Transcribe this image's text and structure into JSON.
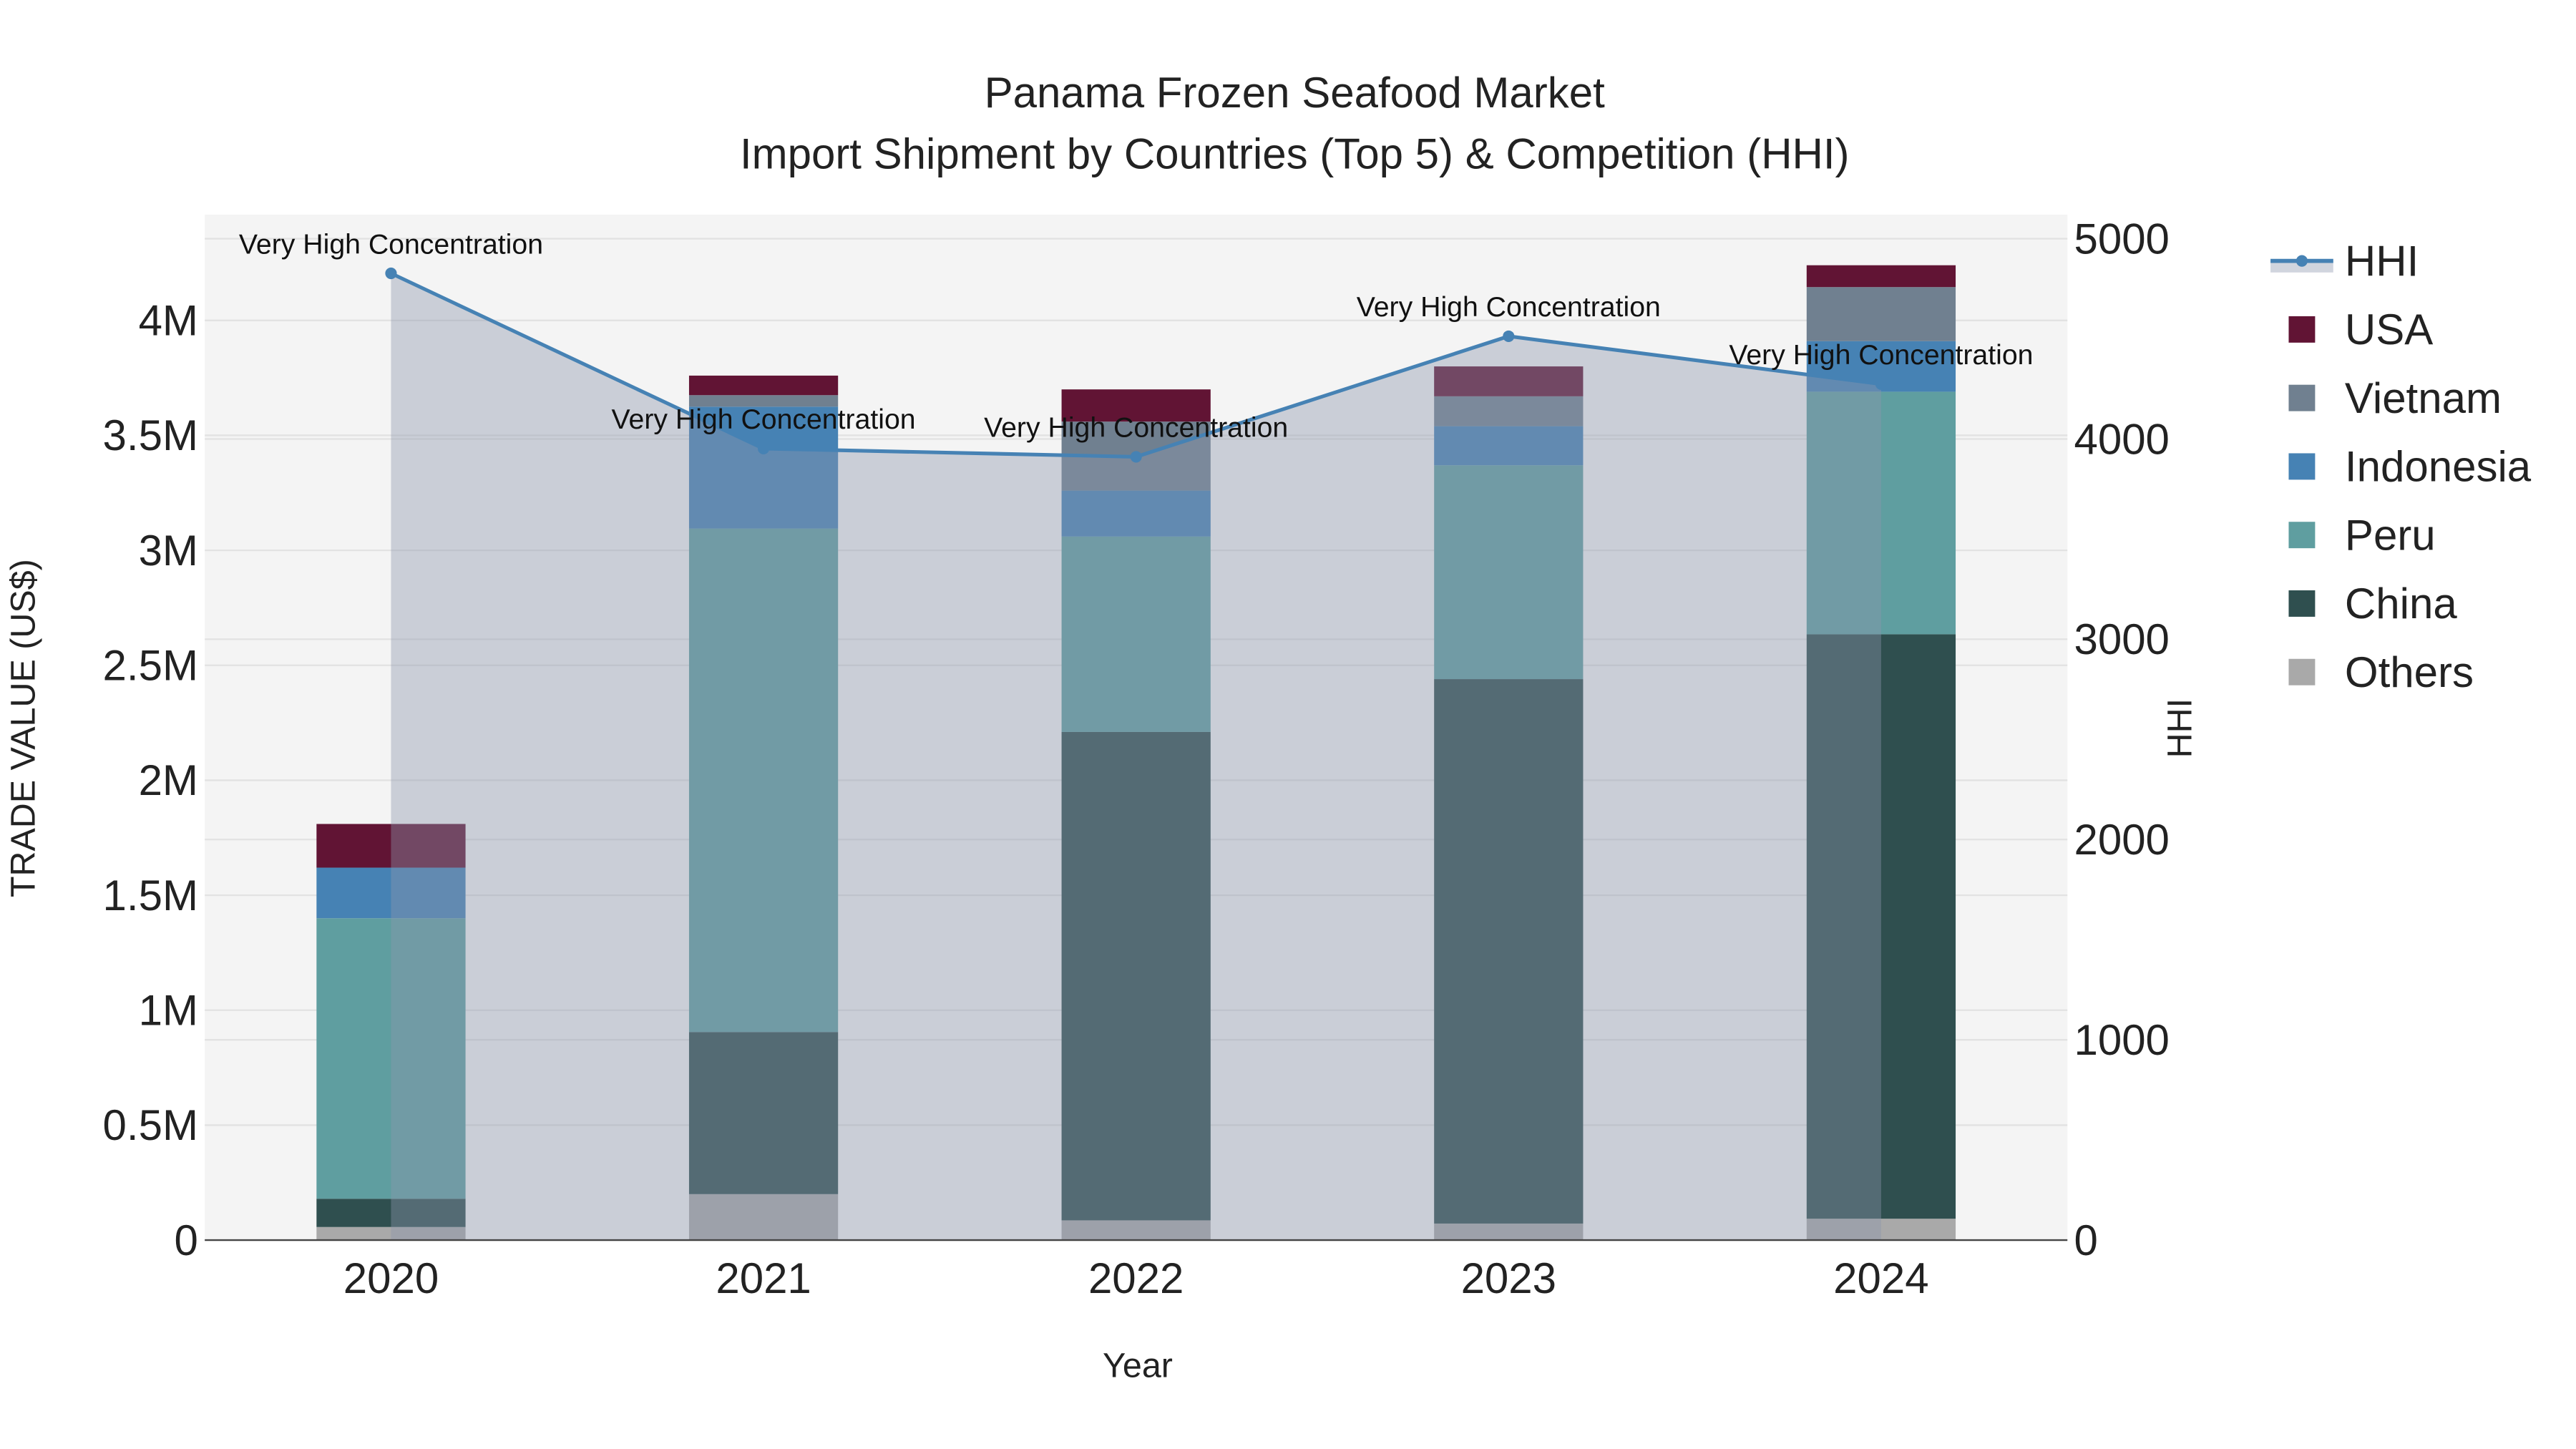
{
  "chart_data": {
    "type": "bar",
    "title": "Panama Frozen Seafood Market",
    "subtitle": "Import Shipment by Countries (Top 5) & Competition (HHI)",
    "xlabel": "Year",
    "ylabel": "TRADE VALUE (US$)",
    "y2label": "HHI",
    "categories": [
      "2020",
      "2021",
      "2022",
      "2023",
      "2024"
    ],
    "ylim": [
      0,
      4460000
    ],
    "y2lim": [
      0,
      5120
    ],
    "yticks": [
      {
        "v": 0,
        "label": "0"
      },
      {
        "v": 500000,
        "label": "0.5M"
      },
      {
        "v": 1000000,
        "label": "1M"
      },
      {
        "v": 1500000,
        "label": "1.5M"
      },
      {
        "v": 2000000,
        "label": "2M"
      },
      {
        "v": 2500000,
        "label": "2.5M"
      },
      {
        "v": 3000000,
        "label": "3M"
      },
      {
        "v": 3500000,
        "label": "3.5M"
      },
      {
        "v": 4000000,
        "label": "4M"
      }
    ],
    "y2ticks": [
      {
        "v": 0,
        "label": "0"
      },
      {
        "v": 1000,
        "label": "1000"
      },
      {
        "v": 2000,
        "label": "2000"
      },
      {
        "v": 3000,
        "label": "3000"
      },
      {
        "v": 4000,
        "label": "4000"
      },
      {
        "v": 5000,
        "label": "5000"
      }
    ],
    "series": [
      {
        "name": "Others",
        "color": "#a9a9a9",
        "values": [
          57000,
          200000,
          86000,
          72000,
          93000
        ]
      },
      {
        "name": "China",
        "color": "#2f4f4f",
        "values": [
          123000,
          705000,
          2124000,
          2368000,
          2542000
        ]
      },
      {
        "name": "Peru",
        "color": "#5f9ea0",
        "values": [
          1220000,
          2190000,
          850000,
          930000,
          1055000
        ]
      },
      {
        "name": "Indonesia",
        "color": "#4682b4",
        "values": [
          220000,
          530000,
          200000,
          170000,
          220000
        ]
      },
      {
        "name": "Vietnam",
        "color": "#708090",
        "values": [
          0,
          50000,
          300000,
          130000,
          235000
        ]
      },
      {
        "name": "USA",
        "color": "#611434",
        "values": [
          190000,
          85000,
          140000,
          130000,
          95000
        ]
      }
    ],
    "line": {
      "name": "HHI",
      "color": "#4682b4",
      "values": [
        4827,
        3952,
        3911,
        4513,
        4274
      ],
      "annotations": [
        "Very High Concentration",
        "Very High Concentration",
        "Very High Concentration",
        "Very High Concentration",
        "Very High Concentration"
      ]
    },
    "legend": [
      "HHI",
      "USA",
      "Vietnam",
      "Indonesia",
      "Peru",
      "China",
      "Others"
    ],
    "legend_position": "right",
    "grid": true
  }
}
